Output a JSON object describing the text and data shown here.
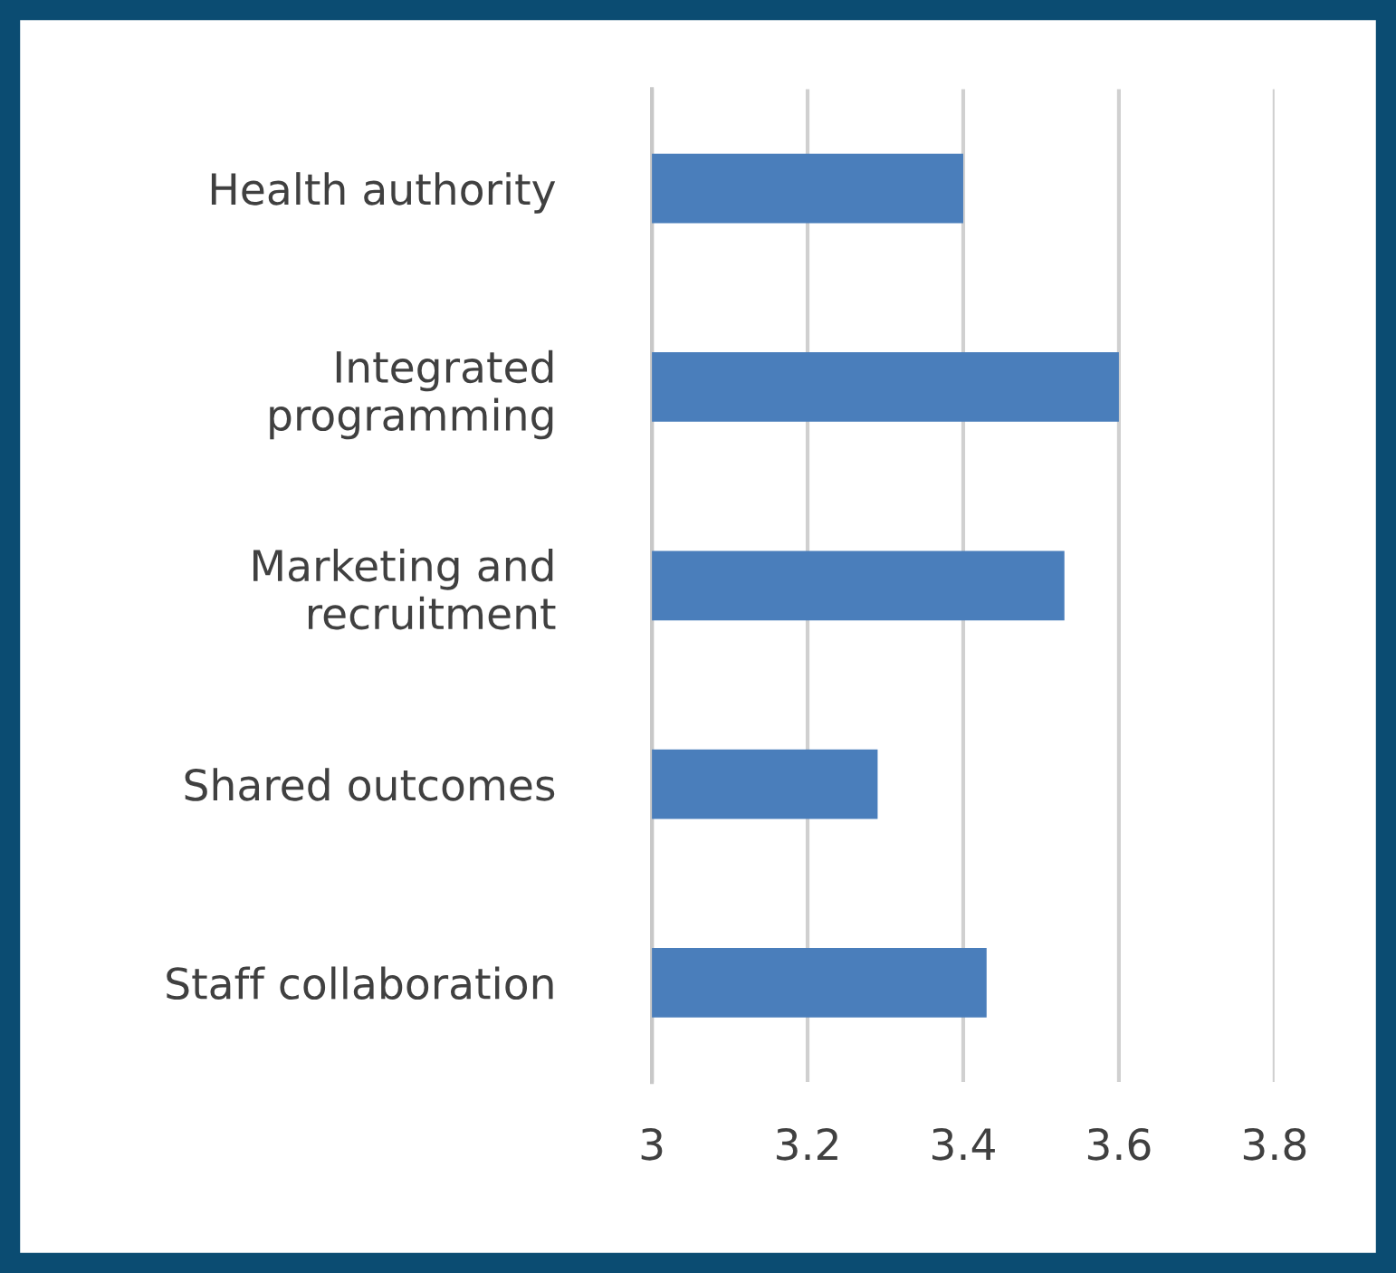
{
  "chart_data": {
    "type": "bar",
    "orientation": "horizontal",
    "categories": [
      "Health authority",
      "Integrated\nprogramming",
      "Marketing and\nrecruitment",
      "Shared outcomes",
      "Staff collaboration"
    ],
    "values": [
      3.4,
      3.6,
      3.53,
      3.29,
      3.43
    ],
    "color": "#4a7ebb",
    "xlim": [
      3,
      3.8
    ],
    "xticks": [
      3,
      3.2,
      3.4,
      3.6,
      3.8
    ],
    "grid": "x",
    "legend": false
  }
}
